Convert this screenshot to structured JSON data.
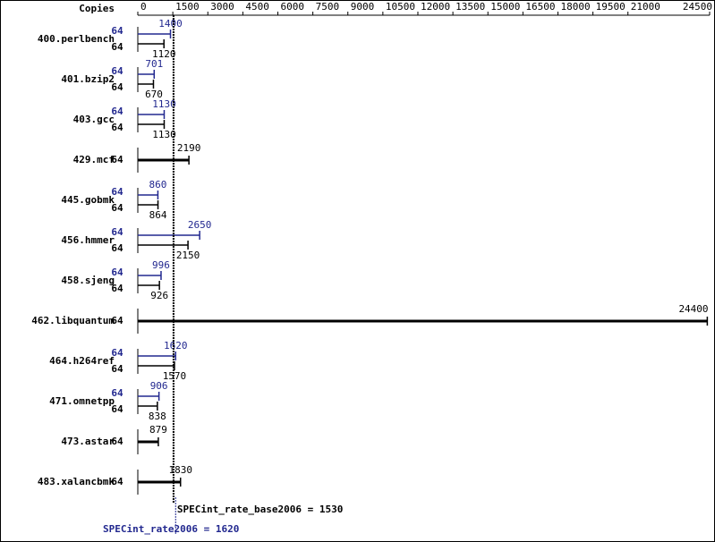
{
  "chart_data": {
    "type": "bar",
    "horizontal": true,
    "copies_header": "Copies",
    "categories": [
      "400.perlbench",
      "401.bzip2",
      "403.gcc",
      "429.mcf",
      "445.gobmk",
      "456.hmmer",
      "458.sjeng",
      "462.libquantum",
      "464.h264ref",
      "471.omnetpp",
      "473.astar",
      "483.xalancbmk"
    ],
    "series": [
      {
        "color": "#22288f",
        "values": [
          1400,
          701,
          1130,
          null,
          860,
          2650,
          996,
          null,
          1620,
          906,
          null,
          null
        ],
        "copies": [
          64,
          64,
          64,
          null,
          64,
          64,
          64,
          null,
          64,
          64,
          null,
          null
        ]
      },
      {
        "color": "#000000",
        "values": [
          1120,
          670,
          1130,
          2190,
          864,
          2150,
          926,
          24400,
          1570,
          838,
          879,
          1830
        ],
        "copies": [
          64,
          64,
          64,
          64,
          64,
          64,
          64,
          64,
          64,
          64,
          64,
          64
        ]
      }
    ],
    "xlim": [
      0,
      24500
    ],
    "xticks": [
      0,
      1500,
      3000,
      4500,
      6000,
      7500,
      9000,
      10500,
      12000,
      13500,
      15000,
      16500,
      18000,
      19500,
      21000,
      24500
    ],
    "references": [
      {
        "label": "SPECint_rate_base2006 = 1530",
        "value": 1530,
        "color": "#000000"
      },
      {
        "label": "SPECint_rate2006 = 1620",
        "value": 1620,
        "color": "#22288f"
      }
    ]
  }
}
